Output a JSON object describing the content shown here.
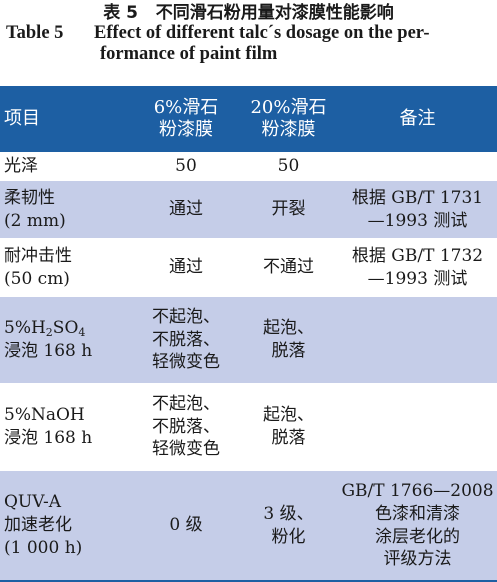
{
  "caption": {
    "cn_label": "表 5",
    "cn_title": "不同滑石粉用量对漆膜性能影响",
    "en_label": "Table 5",
    "en_title_line1": "Effect of different talc´s dosage on the per-",
    "en_title_line2": "formance of paint film"
  },
  "headers": {
    "item": "项目",
    "col6_line1": "6%滑石",
    "col6_line2": "粉漆膜",
    "col20_line1": "20%滑石",
    "col20_line2": "粉漆膜",
    "remark": "备注"
  },
  "rows": {
    "gloss": {
      "item": "光泽",
      "v6": "50",
      "v20": "50",
      "remark": ""
    },
    "flex": {
      "item_line1": "柔韧性",
      "item_line2": "(2 mm)",
      "v6": "通过",
      "v20": "开裂",
      "remark_line1": "根据 GB/T 1731",
      "remark_line2": "—1993 测试"
    },
    "impact": {
      "item_line1": "耐冲击性",
      "item_line2": "(50 cm)",
      "v6": "通过",
      "v20": "不通过",
      "remark_line1": "根据 GB/T 1732",
      "remark_line2": "—1993 测试"
    },
    "acid": {
      "item_pre": "5%H",
      "item_sub1": "2",
      "item_mid": "SO",
      "item_sub2": "4",
      "item_line2": "浸泡 168 h",
      "v6_line1": "不起泡、",
      "v6_line2": "不脱落、",
      "v6_line3": "轻微变色",
      "v20_line1": "起泡、",
      "v20_line2": "脱落"
    },
    "base": {
      "item_line1": "5%NaOH",
      "item_line2": "浸泡 168 h",
      "v6_line1": "不起泡、",
      "v6_line2": "不脱落、",
      "v6_line3": "轻微变色",
      "v20_line1": "起泡、",
      "v20_line2": "脱落"
    },
    "quv": {
      "item_line1": "QUV-A",
      "item_line2": "加速老化",
      "item_line3": "(1 000 h)",
      "v6": "0 级",
      "v20_line1": "3 级、",
      "v20_line2": "粉化",
      "remark_line1": "GB/T 1766—2008",
      "remark_line2": "色漆和清漆",
      "remark_line3": "涂层老化的",
      "remark_line4": "评级方法"
    }
  },
  "colors": {
    "header_bg": "#1d5fa3",
    "header_text": "#ffffff",
    "shade_row_bg": "#c5cde8",
    "plain_row_bg": "#ffffff"
  }
}
